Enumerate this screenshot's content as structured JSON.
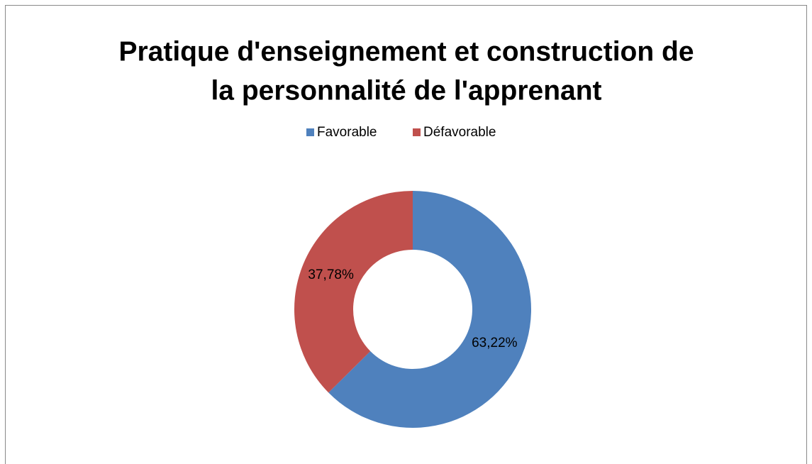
{
  "chart_data": {
    "type": "donut",
    "title": [
      "Pratique d'enseignement et construction de",
      "la personnalité de l'apprenant"
    ],
    "categories": [
      "Favorable",
      "Défavorable"
    ],
    "values": [
      63.22,
      37.78
    ],
    "value_labels": [
      "63,22%",
      "37,78%"
    ],
    "colors": [
      "#4f81bd",
      "#c0504d"
    ],
    "legend": "top"
  }
}
